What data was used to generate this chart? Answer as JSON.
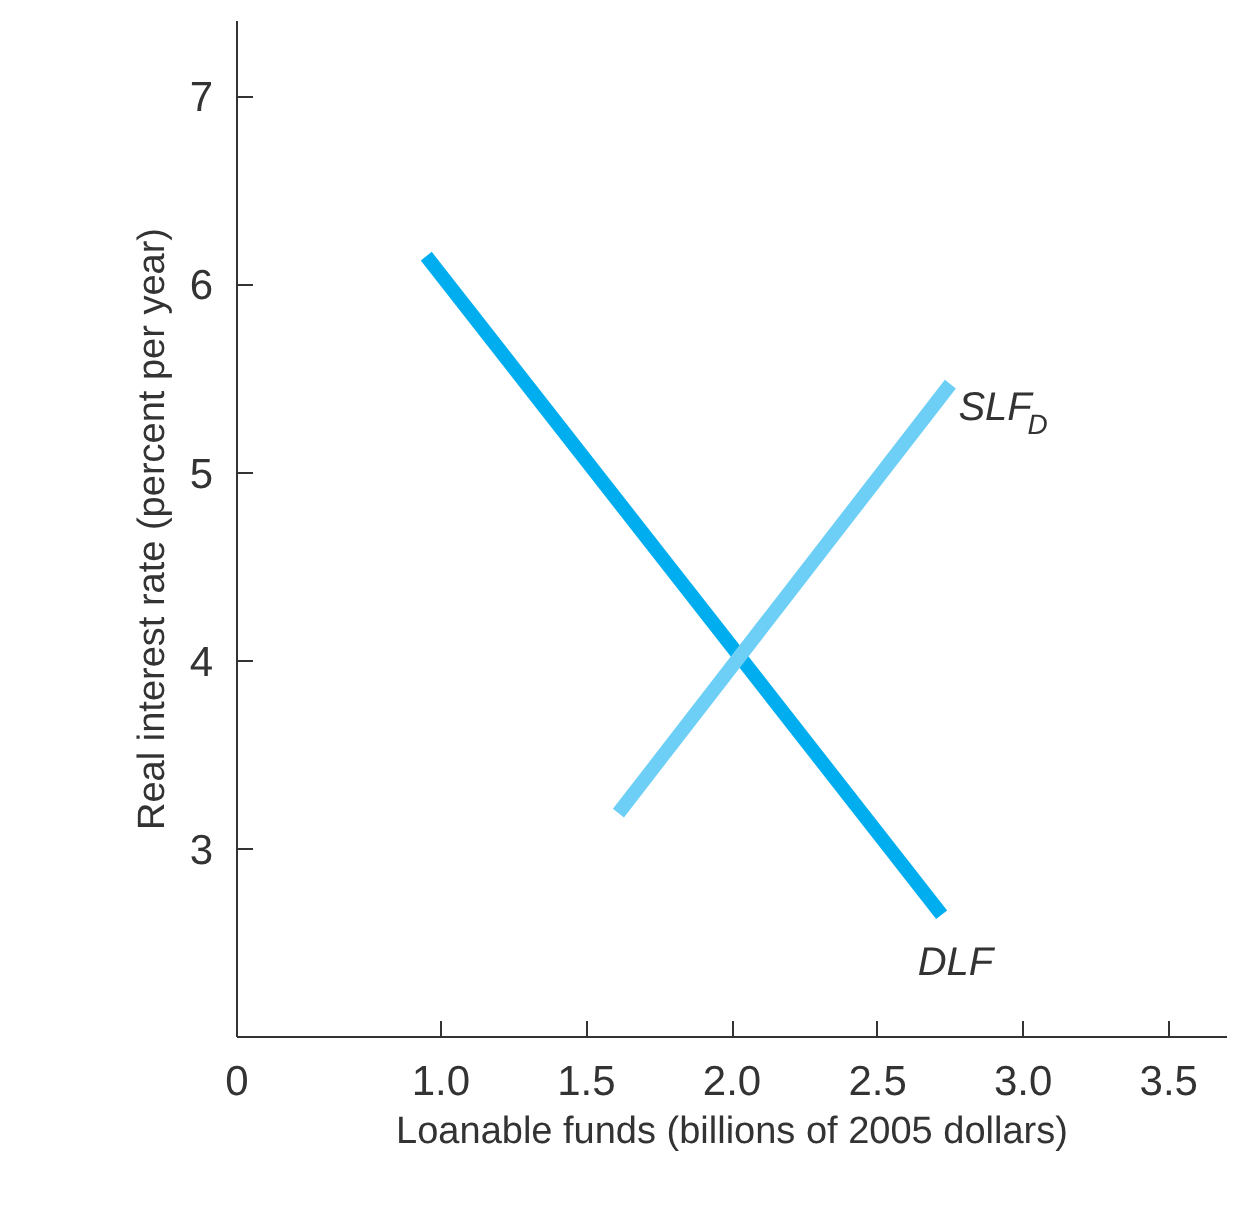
{
  "chart_data": {
    "type": "line",
    "xlabel": "Loanable funds (billions of 2005 dollars)",
    "ylabel": "Real interest rate (percent per year)",
    "xlim": [
      0.3,
      3.7
    ],
    "ylim": [
      2.0,
      7.4
    ],
    "xticks": [
      {
        "value": 0.3,
        "label": "0"
      },
      {
        "value": 1.0,
        "label": "1.0"
      },
      {
        "value": 1.5,
        "label": "1.5"
      },
      {
        "value": 2.0,
        "label": "2.0"
      },
      {
        "value": 2.5,
        "label": "2.5"
      },
      {
        "value": 3.0,
        "label": "3.0"
      },
      {
        "value": 3.5,
        "label": "3.5"
      }
    ],
    "yticks": [
      3,
      4,
      5,
      6,
      7
    ],
    "grid": false,
    "series": [
      {
        "name": "DLF",
        "color": "#00aeef",
        "x": [
          0.95,
          2.72
        ],
        "values": [
          6.15,
          2.65
        ]
      },
      {
        "name": "SLF$_{D}$",
        "color": "#6dcff6",
        "x": [
          1.61,
          2.75
        ],
        "values": [
          3.19,
          5.47
        ]
      }
    ]
  }
}
